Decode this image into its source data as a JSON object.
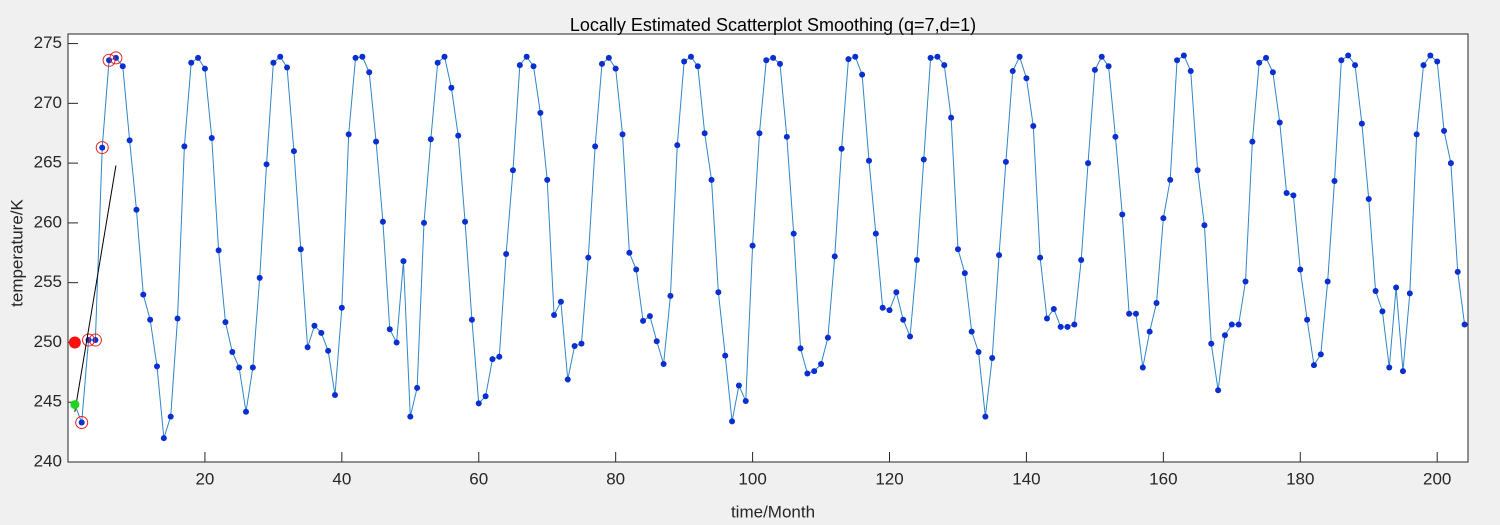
{
  "chart_data": {
    "type": "line",
    "title": "Locally Estimated Scatterplot Smoothing (q=7,d=1)",
    "xlabel": "time/Month",
    "ylabel": "temperature/K",
    "xlim": [
      0,
      204.5
    ],
    "ylim": [
      240,
      275.8
    ],
    "xticks": [
      20,
      40,
      60,
      80,
      100,
      120,
      140,
      160,
      180,
      200
    ],
    "yticks": [
      240,
      245,
      250,
      255,
      260,
      265,
      270,
      275
    ],
    "x": [
      1,
      2,
      3,
      4,
      5,
      6,
      7,
      8,
      9,
      10,
      11,
      12,
      13,
      14,
      15,
      16,
      17,
      18,
      19,
      20,
      21,
      22,
      23,
      24,
      25,
      26,
      27,
      28,
      29,
      30,
      31,
      32,
      33,
      34,
      35,
      36,
      37,
      38,
      39,
      40,
      41,
      42,
      43,
      44,
      45,
      46,
      47,
      48,
      49,
      50,
      51,
      52,
      53,
      54,
      55,
      56,
      57,
      58,
      59,
      60,
      61,
      62,
      63,
      64,
      65,
      66,
      67,
      68,
      69,
      70,
      71,
      72,
      73,
      74,
      75,
      76,
      77,
      78,
      79,
      80,
      81,
      82,
      83,
      84,
      85,
      86,
      87,
      88,
      89,
      90,
      91,
      92,
      93,
      94,
      95,
      96,
      97,
      98,
      99,
      100,
      101,
      102,
      103,
      104,
      105,
      106,
      107,
      108,
      109,
      110,
      111,
      112,
      113,
      114,
      115,
      116,
      117,
      118,
      119,
      120,
      121,
      122,
      123,
      124,
      125,
      126,
      127,
      128,
      129,
      130,
      131,
      132,
      133,
      134,
      135,
      136,
      137,
      138,
      139,
      140,
      141,
      142,
      143,
      144,
      145,
      146,
      147,
      148,
      149,
      150,
      151,
      152,
      153,
      154,
      155,
      156,
      157,
      158,
      159,
      160,
      161,
      162,
      163,
      164,
      165,
      166,
      167,
      168,
      169,
      170,
      171,
      172,
      173,
      174,
      175,
      176,
      177,
      178,
      179,
      180,
      181,
      182,
      183,
      184,
      185,
      186,
      187,
      188,
      189,
      190,
      191,
      192,
      193,
      194,
      195,
      196,
      197,
      198,
      199,
      200,
      201,
      202,
      203,
      204
    ],
    "series": [
      {
        "color": "#2f86c8",
        "marker_color": "#0a2fd1",
        "values": [
          244.8,
          243.3,
          250.2,
          250.2,
          266.3,
          273.6,
          273.8,
          273.1,
          266.9,
          261.1,
          254.0,
          251.9,
          248.0,
          242.0,
          243.8,
          252.0,
          266.4,
          273.4,
          273.8,
          272.9,
          267.1,
          257.7,
          251.7,
          249.2,
          247.9,
          244.2,
          247.9,
          255.4,
          264.9,
          273.4,
          273.9,
          273.0,
          266.0,
          257.8,
          249.6,
          251.4,
          250.8,
          249.3,
          245.6,
          252.9,
          267.4,
          273.8,
          273.9,
          272.6,
          266.8,
          260.1,
          251.1,
          250.0,
          256.8,
          243.8,
          246.2,
          260.0,
          267.0,
          273.4,
          273.9,
          271.3,
          267.3,
          260.1,
          251.9,
          244.9,
          245.5,
          248.6,
          248.8,
          257.4,
          264.4,
          273.2,
          273.9,
          273.1,
          269.2,
          263.6,
          252.3,
          253.4,
          246.9,
          249.7,
          249.9,
          257.1,
          266.4,
          273.3,
          273.8,
          272.9,
          267.4,
          257.5,
          256.1,
          251.8,
          252.2,
          250.1,
          248.2,
          253.9,
          266.5,
          273.5,
          273.9,
          273.1,
          267.5,
          263.6,
          254.2,
          248.9,
          243.4,
          246.4,
          245.1,
          258.1,
          267.5,
          273.6,
          273.8,
          273.3,
          267.2,
          259.1,
          249.5,
          247.4,
          247.6,
          248.2,
          250.4,
          257.2,
          266.2,
          273.7,
          273.9,
          272.4,
          265.2,
          259.1,
          252.9,
          252.7,
          254.2,
          251.9,
          250.5,
          256.9,
          265.3,
          273.8,
          273.9,
          273.2,
          268.8,
          257.8,
          255.8,
          250.9,
          249.2,
          243.8,
          248.7,
          257.3,
          265.1,
          272.7,
          273.9,
          272.1,
          268.1,
          257.1,
          252.0,
          252.8,
          251.3,
          251.3,
          251.5,
          256.9,
          265.0,
          272.8,
          273.9,
          273.1,
          267.2,
          260.7,
          252.4,
          252.4,
          247.9,
          250.9,
          253.3,
          260.4,
          263.6,
          273.6,
          274.0,
          272.7,
          264.4,
          259.8,
          249.9,
          246.0,
          250.6,
          251.5,
          251.5,
          255.1,
          266.8,
          273.4,
          273.8,
          272.6,
          268.4,
          262.5,
          262.3,
          256.1,
          251.9,
          248.1,
          249.0,
          255.1,
          263.5,
          273.6,
          274.0,
          273.2,
          268.3,
          262.0,
          254.3,
          252.6,
          247.9,
          254.6,
          247.6,
          254.1,
          267.4,
          273.2,
          274.0,
          273.5,
          267.7,
          265.0,
          255.9,
          251.5
        ]
      }
    ],
    "circled_points": [
      1,
      2,
      3,
      4,
      5,
      6
    ],
    "circle_color": "#e8211e",
    "fit_line": {
      "x": [
        1,
        7
      ],
      "y": [
        244.2,
        264.8
      ],
      "color": "#000000"
    },
    "fit_point": {
      "x": 1,
      "y": 244.8,
      "color": "#22d422"
    },
    "estimate_point": {
      "x": 1,
      "y": 250.0,
      "color": "#ff1010"
    }
  }
}
